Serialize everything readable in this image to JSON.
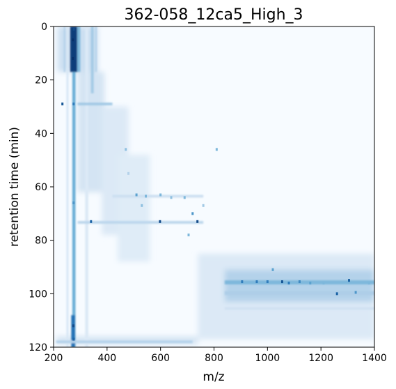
{
  "chart_data": {
    "type": "heatmap",
    "title": "362-058_12ca5_High_3",
    "xlabel": "m/z",
    "ylabel": "retention time (min)",
    "xlim": [
      200,
      1400
    ],
    "ylim": [
      120,
      0
    ],
    "y_axis_inverted": true,
    "x_ticks": [
      200,
      400,
      600,
      800,
      1000,
      1200,
      1400
    ],
    "y_ticks": [
      0,
      20,
      40,
      60,
      80,
      100,
      120
    ],
    "colormap": "Blues",
    "colors": {
      "low": "#f7fbff",
      "mid": "#6baed6",
      "high": "#08306b"
    },
    "grid": false,
    "regions": [
      {
        "x": [
          215,
          365
        ],
        "y": [
          0,
          17
        ],
        "intensity": 0.22
      },
      {
        "x": [
          290,
          390
        ],
        "y": [
          17,
          62
        ],
        "intensity": 0.18
      },
      {
        "x": [
          380,
          480
        ],
        "y": [
          30,
          78
        ],
        "intensity": 0.14
      },
      {
        "x": [
          440,
          560
        ],
        "y": [
          48,
          88
        ],
        "intensity": 0.12
      },
      {
        "x": [
          740,
          1400
        ],
        "y": [
          85,
          117
        ],
        "intensity": 0.14
      },
      {
        "x": [
          840,
          1400
        ],
        "y": [
          91,
          103
        ],
        "intensity": 0.3
      },
      {
        "x": [
          210,
          740
        ],
        "y": [
          116,
          119
        ],
        "intensity": 0.18
      }
    ],
    "bands": [
      {
        "x": [
          270,
          282
        ],
        "y": [
          0,
          120
        ],
        "intensity": 0.5
      },
      {
        "x": [
          262,
          290
        ],
        "y": [
          0,
          17
        ],
        "intensity": 0.95
      },
      {
        "x": [
          288,
          300
        ],
        "y": [
          0,
          17
        ],
        "intensity": 0.45
      },
      {
        "x": [
          248,
          256
        ],
        "y": [
          0,
          120
        ],
        "intensity": 0.16
      },
      {
        "x": [
          318,
          330
        ],
        "y": [
          0,
          120
        ],
        "intensity": 0.14
      },
      {
        "x": [
          340,
          350
        ],
        "y": [
          0,
          25
        ],
        "intensity": 0.35
      },
      {
        "x": [
          355,
          362
        ],
        "y": [
          0,
          17
        ],
        "intensity": 0.3
      },
      {
        "x": [
          238,
          244
        ],
        "y": [
          0,
          17
        ],
        "intensity": 0.3
      },
      {
        "x": [
          266,
          280
        ],
        "y": [
          108,
          120
        ],
        "intensity": 0.75
      },
      {
        "x": [
          290,
          420
        ],
        "y": [
          28.5,
          29.5
        ],
        "intensity": 0.35
      },
      {
        "x": [
          290,
          760
        ],
        "y": [
          72.8,
          73.8
        ],
        "intensity": 0.28
      },
      {
        "x": [
          420,
          760
        ],
        "y": [
          63,
          64
        ],
        "intensity": 0.22
      },
      {
        "x": [
          840,
          1400
        ],
        "y": [
          95,
          96.5
        ],
        "intensity": 0.45
      },
      {
        "x": [
          840,
          1400
        ],
        "y": [
          99,
          100.5
        ],
        "intensity": 0.32
      },
      {
        "x": [
          840,
          1400
        ],
        "y": [
          105,
          106
        ],
        "intensity": 0.2
      },
      {
        "x": [
          210,
          720
        ],
        "y": [
          117.5,
          118.5
        ],
        "intensity": 0.3
      }
    ],
    "peaks": [
      {
        "mz": 233,
        "rt": 29,
        "intensity": 0.85
      },
      {
        "mz": 272,
        "rt": 5,
        "intensity": 1.0
      },
      {
        "mz": 272,
        "rt": 12,
        "intensity": 1.0
      },
      {
        "mz": 276,
        "rt": 1,
        "intensity": 0.9
      },
      {
        "mz": 275,
        "rt": 29,
        "intensity": 0.7
      },
      {
        "mz": 275,
        "rt": 66,
        "intensity": 0.6
      },
      {
        "mz": 274,
        "rt": 112,
        "intensity": 0.9
      },
      {
        "mz": 275,
        "rt": 117,
        "intensity": 0.8
      },
      {
        "mz": 340,
        "rt": 73,
        "intensity": 0.8
      },
      {
        "mz": 470,
        "rt": 46,
        "intensity": 0.4
      },
      {
        "mz": 480,
        "rt": 55,
        "intensity": 0.3
      },
      {
        "mz": 510,
        "rt": 63,
        "intensity": 0.55
      },
      {
        "mz": 530,
        "rt": 67,
        "intensity": 0.4
      },
      {
        "mz": 545,
        "rt": 63.5,
        "intensity": 0.45
      },
      {
        "mz": 598,
        "rt": 73,
        "intensity": 0.9
      },
      {
        "mz": 600,
        "rt": 63,
        "intensity": 0.45
      },
      {
        "mz": 640,
        "rt": 64,
        "intensity": 0.4
      },
      {
        "mz": 690,
        "rt": 64,
        "intensity": 0.45
      },
      {
        "mz": 720,
        "rt": 70,
        "intensity": 0.6
      },
      {
        "mz": 738,
        "rt": 73,
        "intensity": 0.9
      },
      {
        "mz": 760,
        "rt": 67,
        "intensity": 0.35
      },
      {
        "mz": 705,
        "rt": 78,
        "intensity": 0.45
      },
      {
        "mz": 810,
        "rt": 46,
        "intensity": 0.45
      },
      {
        "mz": 1020,
        "rt": 91,
        "intensity": 0.55
      },
      {
        "mz": 905,
        "rt": 95.5,
        "intensity": 0.7
      },
      {
        "mz": 960,
        "rt": 95.5,
        "intensity": 0.7
      },
      {
        "mz": 1000,
        "rt": 95.5,
        "intensity": 0.7
      },
      {
        "mz": 1055,
        "rt": 95.5,
        "intensity": 0.85
      },
      {
        "mz": 1080,
        "rt": 96,
        "intensity": 0.7
      },
      {
        "mz": 1120,
        "rt": 95.5,
        "intensity": 0.65
      },
      {
        "mz": 1160,
        "rt": 96,
        "intensity": 0.55
      },
      {
        "mz": 1210,
        "rt": 96,
        "intensity": 0.45
      },
      {
        "mz": 1260,
        "rt": 100,
        "intensity": 0.8
      },
      {
        "mz": 1305,
        "rt": 95,
        "intensity": 0.8
      },
      {
        "mz": 1330,
        "rt": 99.5,
        "intensity": 0.6
      },
      {
        "mz": 1380,
        "rt": 96,
        "intensity": 0.45
      }
    ]
  }
}
